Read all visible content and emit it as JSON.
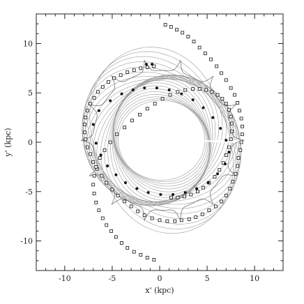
{
  "chart_data": {
    "type": "scatter",
    "title": "",
    "xlabel": "x' (kpc)",
    "ylabel": "y' (kpc)",
    "xlim": [
      -13,
      13
    ],
    "ylim": [
      -13,
      13
    ],
    "x_ticks": [
      -10,
      -5,
      0,
      5,
      10
    ],
    "y_ticks": [
      -10,
      -5,
      0,
      5,
      10
    ],
    "x_tick_labels": [
      "-10",
      "-5",
      "0",
      "5",
      "10"
    ],
    "y_tick_labels": [
      "-10",
      "-5",
      "0",
      "5",
      "10"
    ],
    "grid": false,
    "legend": "none",
    "series": [
      {
        "marker": "open-square",
        "x": [
          0.6,
          1.2,
          1.8,
          2.4,
          3.0,
          3.6,
          4.2,
          4.8,
          5.4,
          6.0,
          6.5,
          7.0,
          7.5,
          7.9,
          8.2,
          8.4,
          8.6,
          8.7,
          8.7,
          8.6,
          8.5,
          8.3,
          8.2,
          8.0,
          7.7,
          7.4,
          7.0,
          6.5,
          5.9,
          5.2,
          4.5,
          3.8,
          3.1,
          2.3,
          1.6,
          0.8,
          0.0,
          -0.8,
          -1.6,
          -2.3,
          -3.0,
          -3.7,
          -4.4,
          -5.0,
          -5.6,
          -6.1,
          -6.6,
          -7.0,
          -7.3,
          -7.6,
          -7.8,
          -7.9,
          -7.9,
          -7.8,
          -7.6,
          -7.3,
          -6.9,
          -6.5,
          -6.0,
          -5.4,
          -4.8,
          -4.1,
          -3.4,
          -2.7,
          -2.0,
          -1.3,
          -0.6
        ],
        "y": [
          11.9,
          11.7,
          11.4,
          11.1,
          10.7,
          10.2,
          9.6,
          9.0,
          8.4,
          7.7,
          7.0,
          6.3,
          5.5,
          4.8,
          4.0,
          3.2,
          2.4,
          1.6,
          0.8,
          0.0,
          -0.8,
          -1.6,
          -2.4,
          -3.2,
          -4.0,
          -4.7,
          -5.4,
          -6.0,
          -6.5,
          -6.9,
          -7.3,
          -7.6,
          -7.8,
          -7.9,
          -8.0,
          -8.0,
          -7.9,
          -7.7,
          -7.4,
          -7.0,
          -6.5,
          -6.0,
          -5.4,
          -4.8,
          -4.1,
          -3.4,
          -2.7,
          -2.0,
          -1.2,
          -0.5,
          0.3,
          1.0,
          1.8,
          2.5,
          3.2,
          3.9,
          4.5,
          5.1,
          5.6,
          6.1,
          6.5,
          6.8,
          7.1,
          7.3,
          7.5,
          7.6,
          7.7
        ]
      },
      {
        "marker": "open-square",
        "x": [
          -0.6,
          -1.3,
          -2.0,
          -2.7,
          -3.4,
          -4.0,
          -4.6,
          -5.1,
          -5.6,
          -6.0,
          -6.4,
          -6.7,
          -6.9,
          -7.0,
          -6.9,
          -6.7,
          -6.3,
          -5.8,
          -5.2,
          -4.5,
          -3.7,
          -2.9,
          -2.1,
          -1.3,
          -0.5,
          0.3,
          1.1,
          1.9,
          2.7,
          3.5,
          4.2,
          4.9,
          5.5,
          6.1,
          6.6,
          7.0,
          7.3,
          7.5,
          7.6,
          7.6,
          7.5,
          7.3,
          7.0,
          6.7,
          6.3,
          5.8,
          5.2,
          4.6,
          4.0,
          3.3,
          2.6,
          1.9,
          1.2
        ],
        "y": [
          -11.9,
          -11.7,
          -11.4,
          -11.1,
          -10.7,
          -10.2,
          -9.6,
          -9.0,
          -8.4,
          -7.7,
          -6.9,
          -6.1,
          -5.2,
          -4.3,
          -3.4,
          -2.5,
          -1.6,
          -0.8,
          0.0,
          0.8,
          1.5,
          2.2,
          2.8,
          3.4,
          3.9,
          4.4,
          4.8,
          5.1,
          5.3,
          5.4,
          5.4,
          5.3,
          5.1,
          4.8,
          4.4,
          3.9,
          3.3,
          2.6,
          1.9,
          1.1,
          0.3,
          -0.5,
          -1.3,
          -2.1,
          -2.8,
          -3.5,
          -4.1,
          -4.6,
          -5.0,
          -5.3,
          -5.5,
          -5.6,
          -5.6
        ]
      },
      {
        "marker": "filled-circle",
        "x": [
          -1.4,
          -0.8,
          -7.0,
          -6.4,
          -5.2,
          -4.0,
          -2.8,
          -1.6,
          -0.3,
          1.0,
          2.3,
          3.5,
          4.6,
          5.6,
          6.4,
          7.0,
          7.3,
          6.9,
          6.1,
          5.1,
          3.9,
          2.7,
          1.4,
          0.1,
          -1.2,
          -2.4,
          -3.6,
          -4.6,
          -5.5,
          -6.2,
          -6.7
        ],
        "y": [
          7.9,
          7.9,
          1.8,
          3.2,
          4.2,
          4.9,
          5.3,
          5.5,
          5.5,
          5.3,
          4.9,
          4.3,
          3.5,
          2.5,
          1.4,
          0.2,
          -1.0,
          -2.2,
          -3.2,
          -4.1,
          -4.7,
          -5.1,
          -5.3,
          -5.3,
          -5.1,
          -4.7,
          -4.1,
          -3.3,
          -2.4,
          -1.3,
          -0.1
        ]
      }
    ]
  }
}
